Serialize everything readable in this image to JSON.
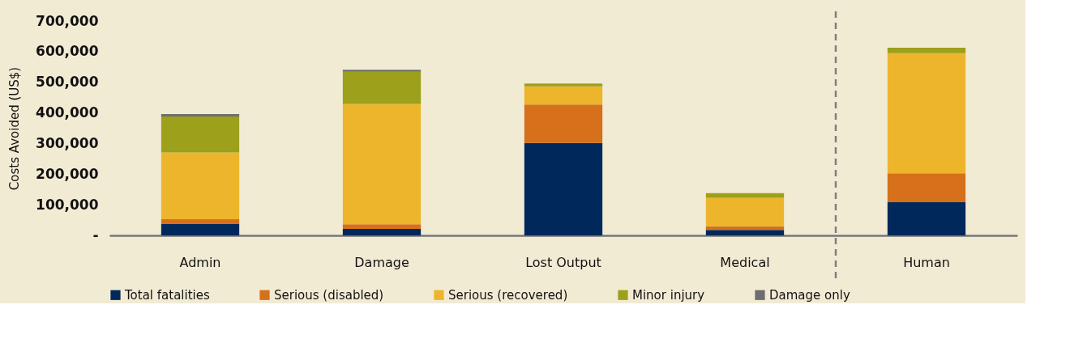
{
  "chart_data": {
    "type": "bar",
    "stacked": true,
    "ylabel": "Costs Avoided (US$)",
    "categories": [
      "Admin",
      "Damage",
      "Lost Output",
      "Medical",
      "Human"
    ],
    "series": [
      {
        "name": "Total fatalities",
        "color": "#00285a",
        "values": [
          38000,
          21000,
          302000,
          18000,
          108000
        ]
      },
      {
        "name": "Serious (disabled)",
        "color": "#d6701b",
        "values": [
          15000,
          15000,
          125000,
          12000,
          95000
        ]
      },
      {
        "name": "Serious (recovered)",
        "color": "#edb52b",
        "values": [
          218000,
          393000,
          60000,
          93000,
          392000
        ]
      },
      {
        "name": "Minor injury",
        "color": "#9ca01b",
        "values": [
          117000,
          105000,
          9000,
          15000,
          18000
        ]
      },
      {
        "name": "Damage only",
        "color": "#6d6e71",
        "values": [
          8000,
          7000,
          null,
          null,
          null
        ]
      }
    ],
    "ylim": [
      0,
      700000
    ],
    "yticks": [
      {
        "value": 0,
        "label": "-"
      },
      {
        "value": 100000,
        "label": "100,000"
      },
      {
        "value": 200000,
        "label": "200,000"
      },
      {
        "value": 300000,
        "label": "300,000"
      },
      {
        "value": 400000,
        "label": "400,000"
      },
      {
        "value": 500000,
        "label": "500,000"
      },
      {
        "value": 600000,
        "label": "600,000"
      },
      {
        "value": 700000,
        "label": "700,000"
      }
    ],
    "grid": false,
    "legend": "bottom"
  }
}
